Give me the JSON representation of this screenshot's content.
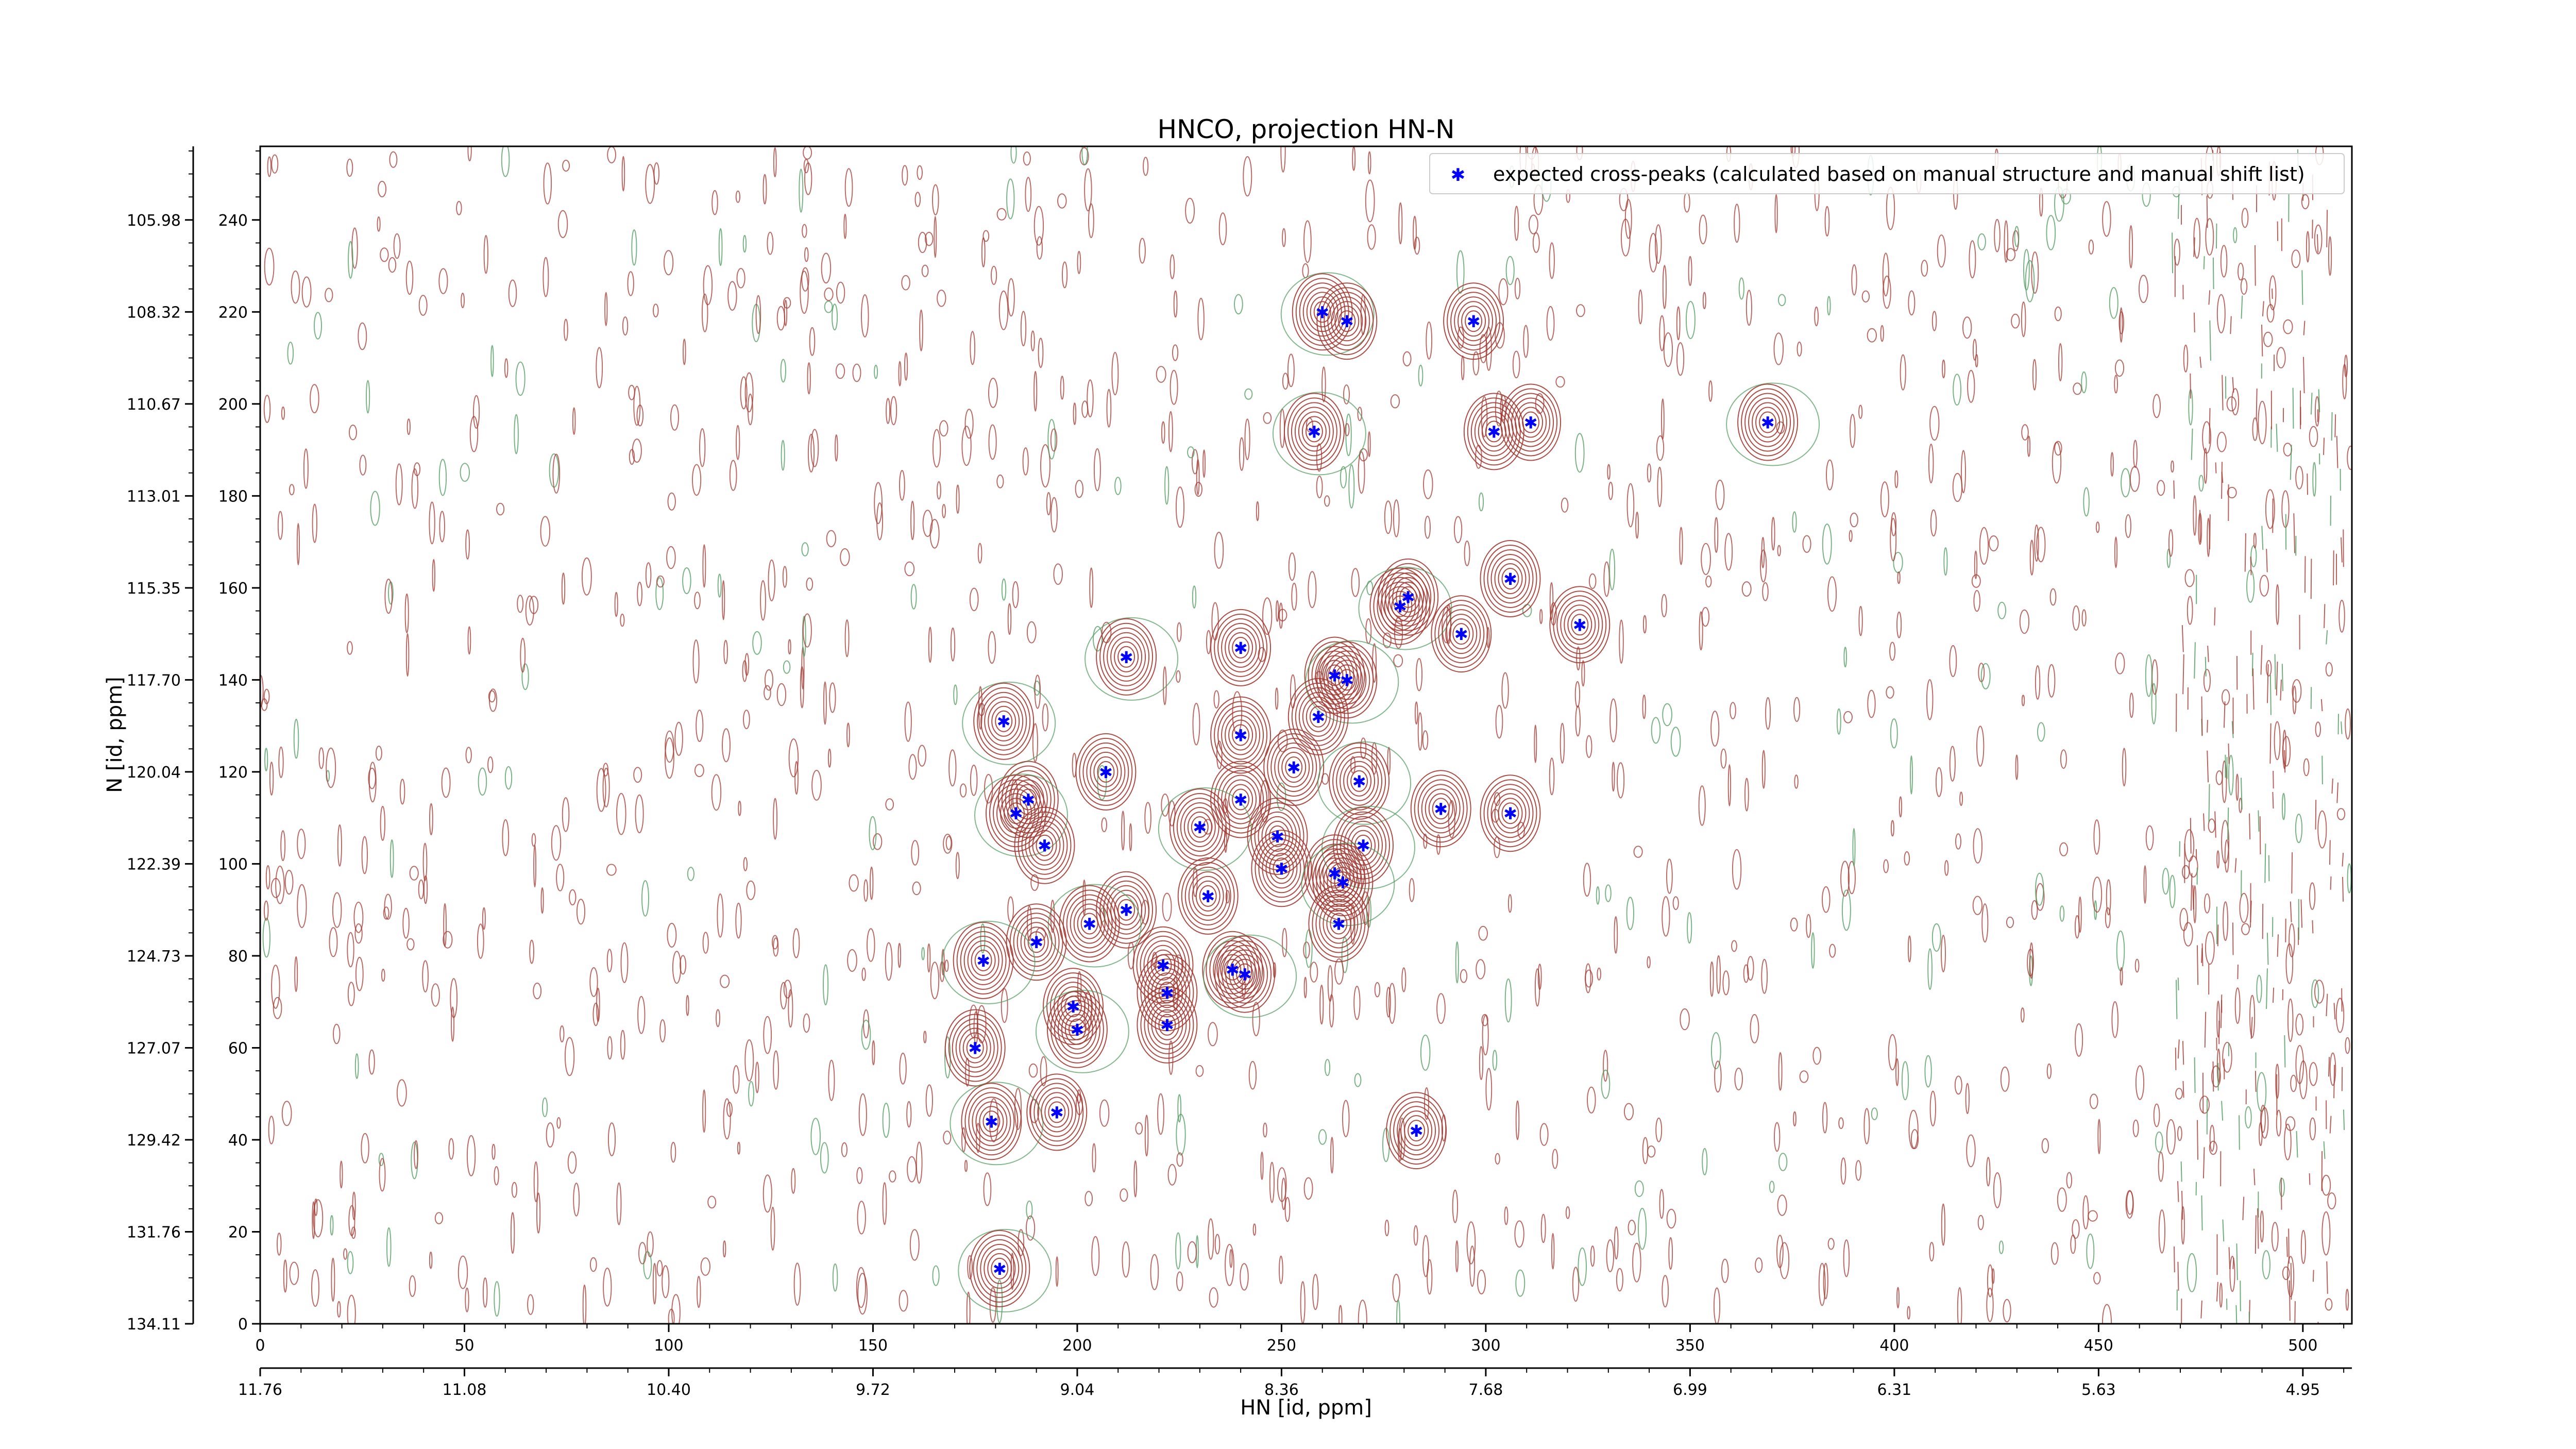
{
  "chart_data": {
    "type": "scatter",
    "title": "HNCO, projection HN-N",
    "xlabel": "HN [id, ppm]",
    "ylabel": "N [id, ppm]",
    "xlim": [
      0,
      512
    ],
    "ylim": [
      0,
      256
    ],
    "x_index_ticks": [
      "0",
      "50",
      "100",
      "150",
      "200",
      "250",
      "300",
      "350",
      "400",
      "450",
      "500"
    ],
    "x_ppm_ticks": [
      "11.76",
      "11.08",
      "10.40",
      "9.72",
      "9.04",
      "8.36",
      "7.68",
      "6.99",
      "6.31",
      "5.63",
      "4.95"
    ],
    "y_index_ticks": [
      "0",
      "20",
      "40",
      "60",
      "80",
      "100",
      "120",
      "140",
      "160",
      "180",
      "200",
      "220",
      "240"
    ],
    "y_ppm_ticks": [
      "134.11",
      "131.76",
      "129.42",
      "127.07",
      "124.73",
      "122.39",
      "120.04",
      "117.70",
      "115.35",
      "113.01",
      "110.67",
      "108.32",
      "105.98"
    ],
    "grid": false,
    "legend_position": "top-right",
    "colors": {
      "positive_contour": "#a23b33",
      "negative_contour": "#4e9a5c",
      "peak_marker": "#0000ff"
    },
    "series": [
      {
        "name": "expected cross-peaks (calculated based on manual structure and manual shift list)",
        "points": [
          [
            260,
            220
          ],
          [
            266,
            218
          ],
          [
            297,
            218
          ],
          [
            258,
            194
          ],
          [
            302,
            194
          ],
          [
            311,
            196
          ],
          [
            369,
            196
          ],
          [
            306,
            162
          ],
          [
            281,
            158
          ],
          [
            279,
            156
          ],
          [
            294,
            150
          ],
          [
            323,
            152
          ],
          [
            212,
            145
          ],
          [
            240,
            147
          ],
          [
            263,
            141
          ],
          [
            266,
            140
          ],
          [
            259,
            132
          ],
          [
            240,
            128
          ],
          [
            182,
            131
          ],
          [
            207,
            120
          ],
          [
            253,
            121
          ],
          [
            269,
            118
          ],
          [
            240,
            114
          ],
          [
            188,
            114
          ],
          [
            185,
            111
          ],
          [
            289,
            112
          ],
          [
            306,
            111
          ],
          [
            230,
            108
          ],
          [
            249,
            106
          ],
          [
            192,
            104
          ],
          [
            270,
            104
          ],
          [
            250,
            99
          ],
          [
            263,
            98
          ],
          [
            265,
            96
          ],
          [
            232,
            93
          ],
          [
            212,
            90
          ],
          [
            203,
            87
          ],
          [
            264,
            87
          ],
          [
            190,
            83
          ],
          [
            177,
            79
          ],
          [
            221,
            78
          ],
          [
            238,
            77
          ],
          [
            241,
            76
          ],
          [
            222,
            72
          ],
          [
            199,
            69
          ],
          [
            200,
            64
          ],
          [
            222,
            65
          ],
          [
            175,
            60
          ],
          [
            179,
            44
          ],
          [
            195,
            46
          ],
          [
            283,
            42
          ],
          [
            181,
            12
          ]
        ]
      }
    ]
  }
}
